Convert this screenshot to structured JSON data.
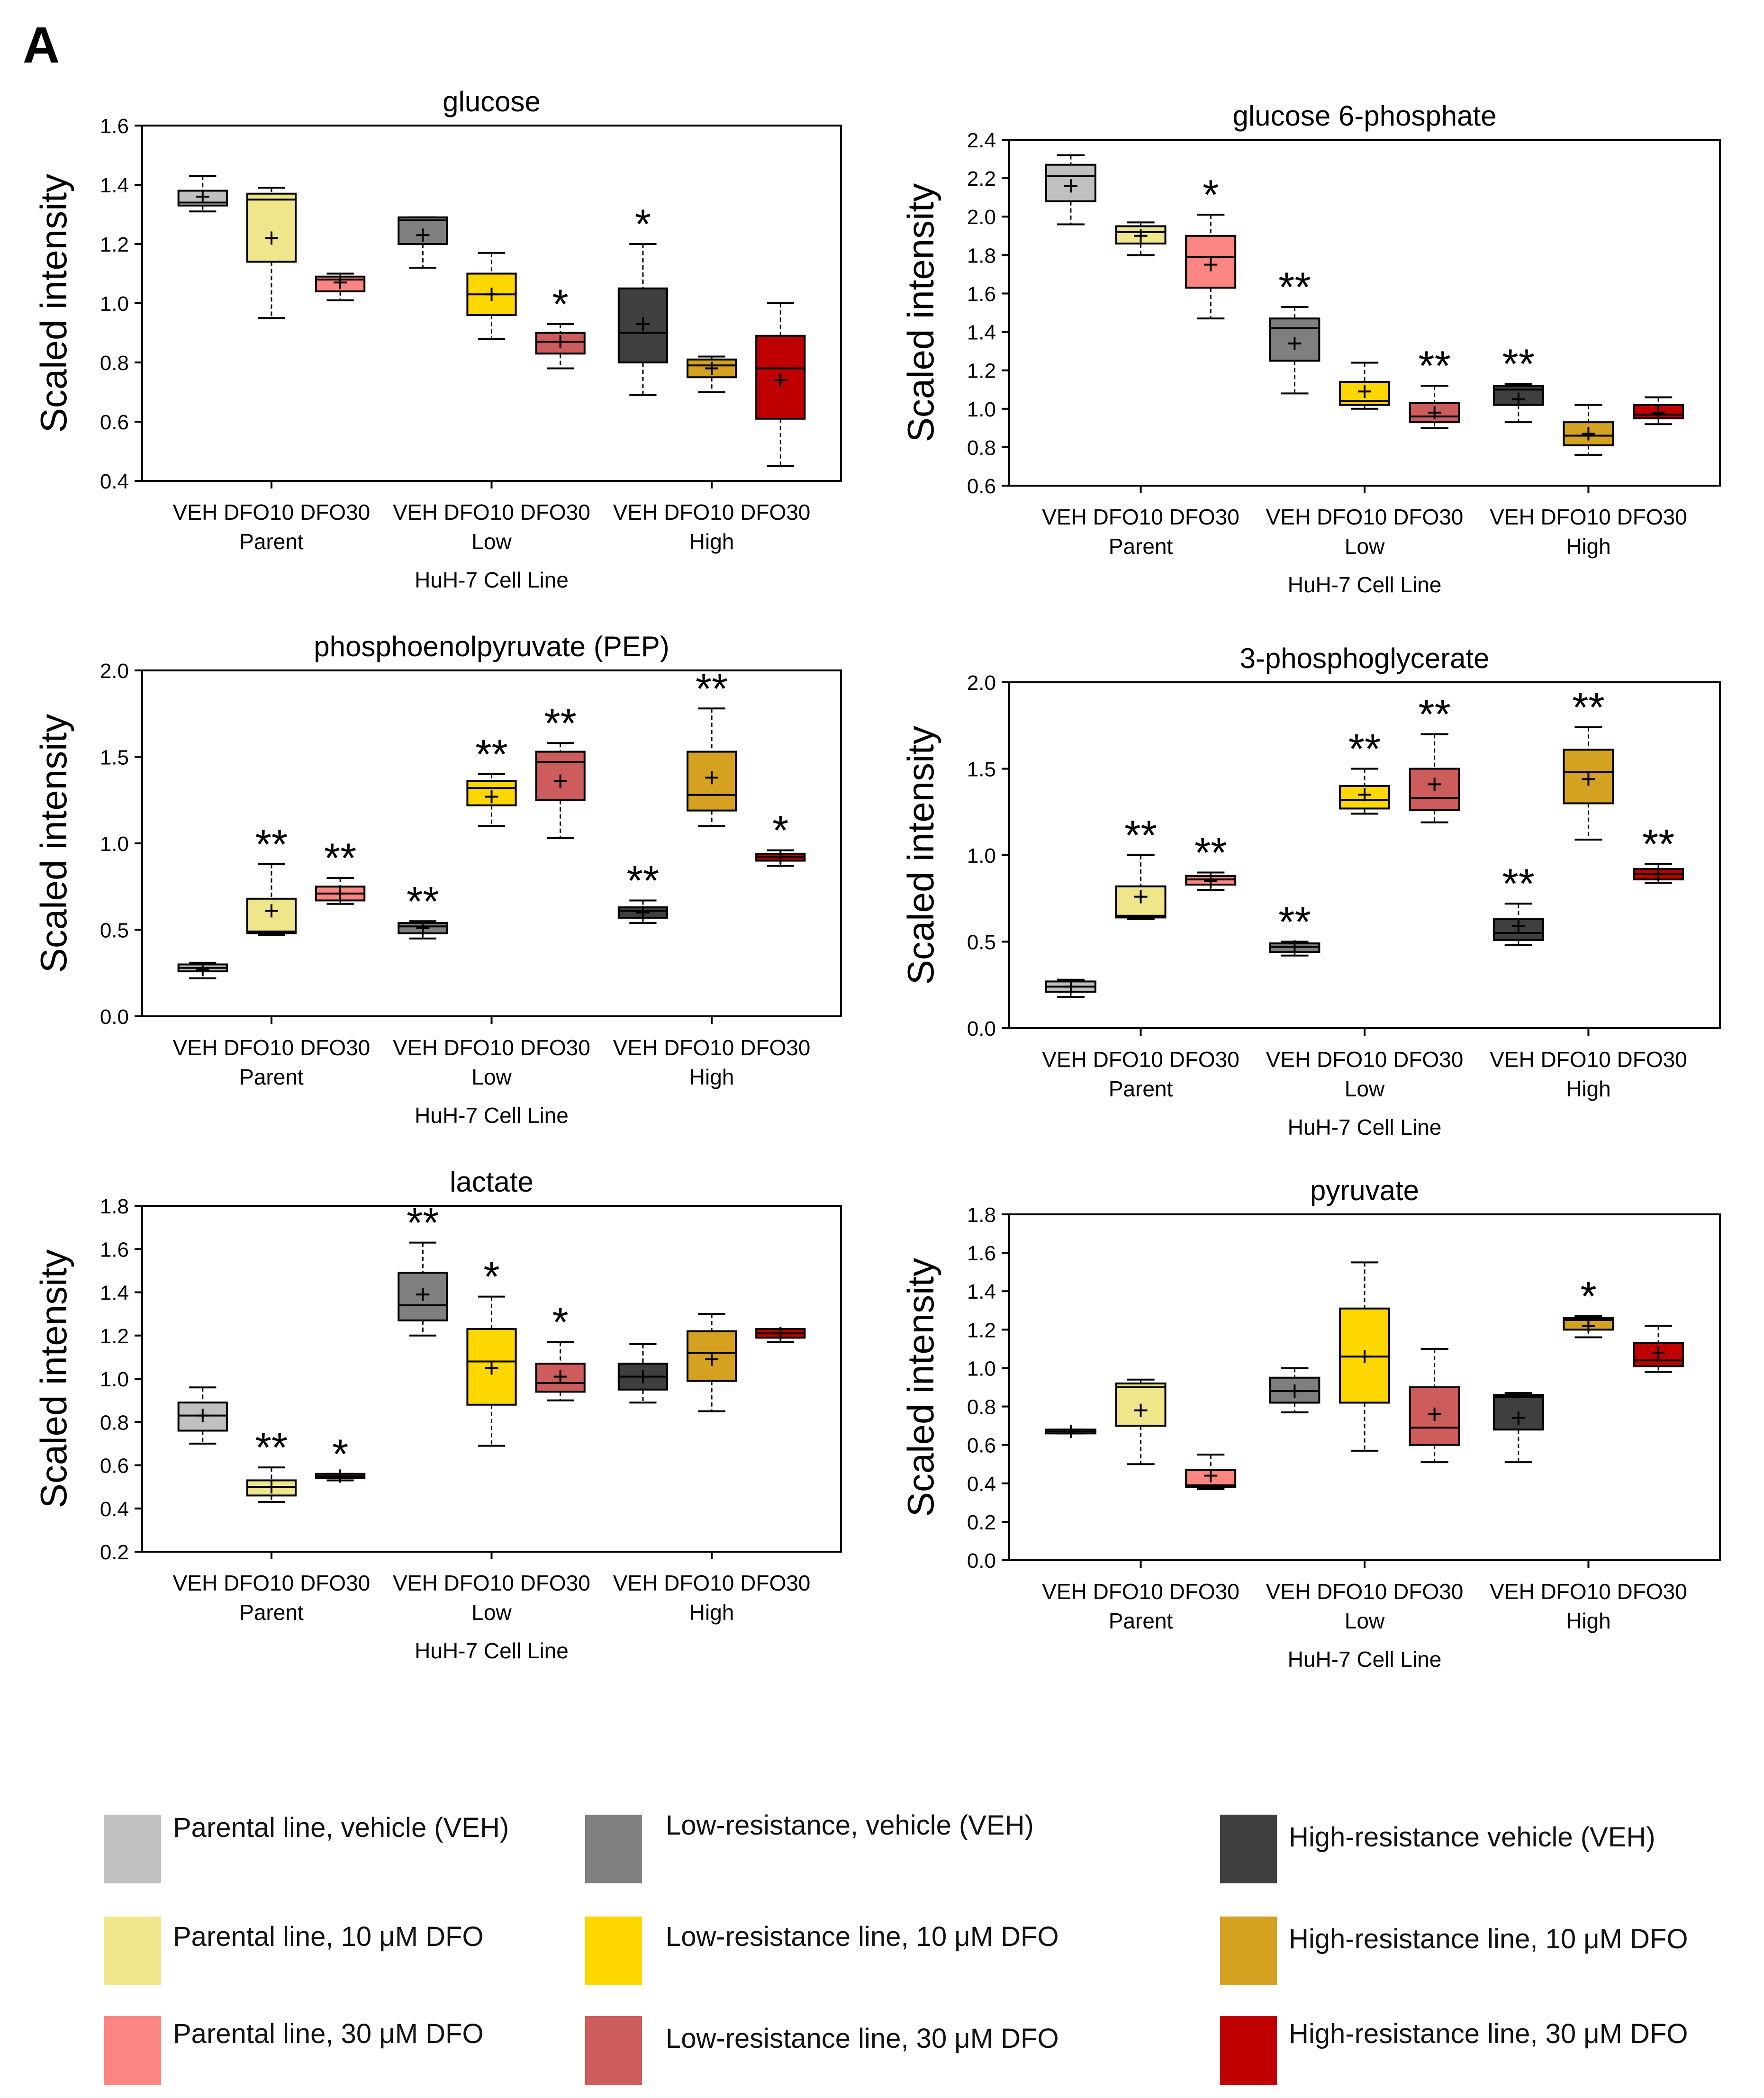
{
  "panel_label": "A",
  "colors": {
    "parent_veh": "#c0c0c0",
    "parent_dfo10": "#efe68b",
    "parent_dfo30": "#fb8580",
    "low_veh": "#7f7f7f",
    "low_dfo10": "#ffd700",
    "low_dfo30": "#cd5c5c",
    "high_veh": "#3f3f3f",
    "high_dfo10": "#d4a121",
    "high_dfo30": "#c00000"
  },
  "legend": [
    {
      "key": "parent_veh",
      "label": "Parental line, vehicle (VEH)"
    },
    {
      "key": "low_veh",
      "label": "Low-resistance, vehicle (VEH)"
    },
    {
      "key": "high_veh",
      "label": "High-resistance vehicle (VEH)"
    },
    {
      "key": "parent_dfo10",
      "label": "Parental line, 10 μM DFO"
    },
    {
      "key": "low_dfo10",
      "label": "Low-resistance line, 10 μM DFO"
    },
    {
      "key": "high_dfo10",
      "label": "High-resistance line, 10 μM DFO"
    },
    {
      "key": "parent_dfo30",
      "label": "Parental line, 30 μM DFO"
    },
    {
      "key": "low_dfo30",
      "label": "Low-resistance line, 30 μM DFO"
    },
    {
      "key": "high_dfo30",
      "label": "High-resistance line, 30 μM DFO"
    }
  ],
  "chart_data": [
    {
      "type": "box",
      "title": "glucose",
      "ylabel": "Scaled intensity",
      "xlabel": "HuH-7 Cell Line",
      "ylim": [
        0.4,
        1.6
      ],
      "yticks": [
        "0.4",
        "0.6",
        "0.8",
        "1.0",
        "1.2",
        "1.4",
        "1.6"
      ],
      "tick_labels": [
        "VEH DFO10 DFO30",
        "VEH  DFO10  DFO30",
        "VEH DFO10 DFO30"
      ],
      "group_labels": [
        "Parent",
        "Low",
        "High"
      ],
      "boxes": [
        {
          "key": "parent_veh",
          "min": 1.31,
          "q1": 1.33,
          "median": 1.34,
          "q3": 1.38,
          "max": 1.43,
          "mean": 1.36,
          "sig": ""
        },
        {
          "key": "parent_dfo10",
          "min": 0.95,
          "q1": 1.14,
          "median": 1.35,
          "q3": 1.37,
          "max": 1.39,
          "mean": 1.22,
          "sig": ""
        },
        {
          "key": "parent_dfo30",
          "min": 1.01,
          "q1": 1.04,
          "median": 1.08,
          "q3": 1.09,
          "max": 1.1,
          "mean": 1.07,
          "sig": ""
        },
        {
          "key": "low_veh",
          "min": 1.12,
          "q1": 1.2,
          "median": 1.28,
          "q3": 1.29,
          "max": 1.29,
          "mean": 1.23,
          "sig": ""
        },
        {
          "key": "low_dfo10",
          "min": 0.88,
          "q1": 0.96,
          "median": 1.03,
          "q3": 1.1,
          "max": 1.17,
          "mean": 1.03,
          "sig": ""
        },
        {
          "key": "low_dfo30",
          "min": 0.78,
          "q1": 0.83,
          "median": 0.87,
          "q3": 0.9,
          "max": 0.93,
          "mean": 0.87,
          "sig": "*"
        },
        {
          "key": "high_veh",
          "min": 0.69,
          "q1": 0.8,
          "median": 0.9,
          "q3": 1.05,
          "max": 1.2,
          "mean": 0.93,
          "sig": "*"
        },
        {
          "key": "high_dfo10",
          "min": 0.7,
          "q1": 0.75,
          "median": 0.79,
          "q3": 0.81,
          "max": 0.82,
          "mean": 0.78,
          "sig": ""
        },
        {
          "key": "high_dfo30",
          "min": 0.45,
          "q1": 0.61,
          "median": 0.78,
          "q3": 0.89,
          "max": 1.0,
          "mean": 0.74,
          "sig": ""
        }
      ]
    },
    {
      "type": "box",
      "title": "glucose 6-phosphate",
      "ylabel": "Scaled intensity",
      "xlabel": "HuH-7 Cell Line",
      "ylim": [
        0.6,
        2.4
      ],
      "yticks": [
        "0.6",
        "0.8",
        "1.0",
        "1.2",
        "1.4",
        "1.6",
        "1.8",
        "2.0",
        "2.2",
        "2.4"
      ],
      "tick_labels": [
        "VEH DFO10 DFO30",
        "VEH  DFO10  DFO30",
        "VEH DFO10 DFO30"
      ],
      "group_labels": [
        "Parent",
        "Low",
        "High"
      ],
      "boxes": [
        {
          "key": "parent_veh",
          "min": 1.96,
          "q1": 2.08,
          "median": 2.21,
          "q3": 2.27,
          "max": 2.32,
          "mean": 2.16,
          "sig": ""
        },
        {
          "key": "parent_dfo10",
          "min": 1.8,
          "q1": 1.86,
          "median": 1.92,
          "q3": 1.95,
          "max": 1.97,
          "mean": 1.9,
          "sig": ""
        },
        {
          "key": "parent_dfo30",
          "min": 1.47,
          "q1": 1.63,
          "median": 1.79,
          "q3": 1.9,
          "max": 2.01,
          "mean": 1.75,
          "sig": "*"
        },
        {
          "key": "low_veh",
          "min": 1.08,
          "q1": 1.25,
          "median": 1.42,
          "q3": 1.47,
          "max": 1.53,
          "mean": 1.34,
          "sig": "**"
        },
        {
          "key": "low_dfo10",
          "min": 1.0,
          "q1": 1.02,
          "median": 1.04,
          "q3": 1.14,
          "max": 1.24,
          "mean": 1.09,
          "sig": ""
        },
        {
          "key": "low_dfo30",
          "min": 0.9,
          "q1": 0.93,
          "median": 0.96,
          "q3": 1.03,
          "max": 1.12,
          "mean": 0.98,
          "sig": "**"
        },
        {
          "key": "high_veh",
          "min": 0.93,
          "q1": 1.02,
          "median": 1.1,
          "q3": 1.12,
          "max": 1.13,
          "mean": 1.05,
          "sig": "**"
        },
        {
          "key": "high_dfo10",
          "min": 0.76,
          "q1": 0.81,
          "median": 0.86,
          "q3": 0.93,
          "max": 1.02,
          "mean": 0.87,
          "sig": ""
        },
        {
          "key": "high_dfo30",
          "min": 0.92,
          "q1": 0.95,
          "median": 0.97,
          "q3": 1.02,
          "max": 1.06,
          "mean": 0.98,
          "sig": ""
        }
      ]
    },
    {
      "type": "box",
      "title": "phosphoenolpyruvate (PEP)",
      "ylabel": "Scaled intensity",
      "xlabel": "HuH-7 Cell Line",
      "ylim": [
        0.0,
        2.0
      ],
      "yticks": [
        "0.0",
        "0.5",
        "1.0",
        "1.5",
        "2.0"
      ],
      "tick_labels": [
        "VEH DFO10 DFO30",
        "VEH  DFO10  DFO30",
        "VEH DFO10 DFO30"
      ],
      "group_labels": [
        "Parent",
        "Low",
        "High"
      ],
      "boxes": [
        {
          "key": "parent_veh",
          "min": 0.22,
          "q1": 0.26,
          "median": 0.28,
          "q3": 0.3,
          "max": 0.31,
          "mean": 0.27,
          "sig": ""
        },
        {
          "key": "parent_dfo10",
          "min": 0.47,
          "q1": 0.48,
          "median": 0.49,
          "q3": 0.68,
          "max": 0.88,
          "mean": 0.61,
          "sig": "**"
        },
        {
          "key": "parent_dfo30",
          "min": 0.65,
          "q1": 0.67,
          "median": 0.71,
          "q3": 0.75,
          "max": 0.8,
          "mean": 0.71,
          "sig": "**"
        },
        {
          "key": "low_veh",
          "min": 0.45,
          "q1": 0.48,
          "median": 0.52,
          "q3": 0.54,
          "max": 0.55,
          "mean": 0.51,
          "sig": "**"
        },
        {
          "key": "low_dfo10",
          "min": 1.1,
          "q1": 1.22,
          "median": 1.32,
          "q3": 1.36,
          "max": 1.4,
          "mean": 1.27,
          "sig": "**"
        },
        {
          "key": "low_dfo30",
          "min": 1.03,
          "q1": 1.25,
          "median": 1.47,
          "q3": 1.53,
          "max": 1.58,
          "mean": 1.36,
          "sig": "**"
        },
        {
          "key": "high_veh",
          "min": 0.54,
          "q1": 0.57,
          "median": 0.61,
          "q3": 0.63,
          "max": 0.67,
          "mean": 0.6,
          "sig": "**"
        },
        {
          "key": "high_dfo10",
          "min": 1.1,
          "q1": 1.19,
          "median": 1.28,
          "q3": 1.53,
          "max": 1.78,
          "mean": 1.38,
          "sig": "**"
        },
        {
          "key": "high_dfo30",
          "min": 0.87,
          "q1": 0.9,
          "median": 0.92,
          "q3": 0.94,
          "max": 0.96,
          "mean": 0.92,
          "sig": "*"
        }
      ]
    },
    {
      "type": "box",
      "title": "3-phosphoglycerate",
      "ylabel": "Scaled intensity",
      "xlabel": "HuH-7 Cell Line",
      "ylim": [
        0.0,
        2.0
      ],
      "yticks": [
        "0.0",
        "0.5",
        "1.0",
        "1.5",
        "2.0"
      ],
      "tick_labels": [
        "VEH DFO10 DFO30",
        "VEH  DFO10  DFO30",
        "VEH DFO10 DFO30"
      ],
      "group_labels": [
        "Parent",
        "Low",
        "High"
      ],
      "boxes": [
        {
          "key": "parent_veh",
          "min": 0.18,
          "q1": 0.21,
          "median": 0.24,
          "q3": 0.27,
          "max": 0.28,
          "mean": 0.24,
          "sig": ""
        },
        {
          "key": "parent_dfo10",
          "min": 0.63,
          "q1": 0.64,
          "median": 0.65,
          "q3": 0.82,
          "max": 1.0,
          "mean": 0.76,
          "sig": "**"
        },
        {
          "key": "parent_dfo30",
          "min": 0.8,
          "q1": 0.83,
          "median": 0.86,
          "q3": 0.88,
          "max": 0.9,
          "mean": 0.85,
          "sig": "**"
        },
        {
          "key": "low_veh",
          "min": 0.42,
          "q1": 0.44,
          "median": 0.47,
          "q3": 0.49,
          "max": 0.5,
          "mean": 0.47,
          "sig": "**"
        },
        {
          "key": "low_dfo10",
          "min": 1.24,
          "q1": 1.27,
          "median": 1.32,
          "q3": 1.4,
          "max": 1.5,
          "mean": 1.35,
          "sig": "**"
        },
        {
          "key": "low_dfo30",
          "min": 1.19,
          "q1": 1.26,
          "median": 1.33,
          "q3": 1.5,
          "max": 1.7,
          "mean": 1.41,
          "sig": "**"
        },
        {
          "key": "high_veh",
          "min": 0.48,
          "q1": 0.51,
          "median": 0.55,
          "q3": 0.63,
          "max": 0.72,
          "mean": 0.59,
          "sig": "**"
        },
        {
          "key": "high_dfo10",
          "min": 1.09,
          "q1": 1.3,
          "median": 1.48,
          "q3": 1.61,
          "max": 1.74,
          "mean": 1.44,
          "sig": "**"
        },
        {
          "key": "high_dfo30",
          "min": 0.84,
          "q1": 0.86,
          "median": 0.89,
          "q3": 0.92,
          "max": 0.95,
          "mean": 0.89,
          "sig": "**"
        }
      ]
    },
    {
      "type": "box",
      "title": "lactate",
      "ylabel": "Scaled intensity",
      "xlabel": "HuH-7 Cell Line",
      "ylim": [
        0.2,
        1.8
      ],
      "yticks": [
        "0.2",
        "0.4",
        "0.6",
        "0.8",
        "1.0",
        "1.2",
        "1.4",
        "1.6",
        "1.8"
      ],
      "tick_labels": [
        "VEH DFO10 DFO30",
        "VEH  DFO10  DFO30",
        "VEH DFO10 DFO30"
      ],
      "group_labels": [
        "Parent",
        "Low",
        "High"
      ],
      "boxes": [
        {
          "key": "parent_veh",
          "min": 0.7,
          "q1": 0.76,
          "median": 0.83,
          "q3": 0.89,
          "max": 0.96,
          "mean": 0.83,
          "sig": ""
        },
        {
          "key": "parent_dfo10",
          "min": 0.43,
          "q1": 0.46,
          "median": 0.5,
          "q3": 0.53,
          "max": 0.59,
          "mean": 0.5,
          "sig": "**"
        },
        {
          "key": "parent_dfo30",
          "min": 0.53,
          "q1": 0.54,
          "median": 0.55,
          "q3": 0.56,
          "max": 0.56,
          "mean": 0.55,
          "sig": "*"
        },
        {
          "key": "low_veh",
          "min": 1.2,
          "q1": 1.27,
          "median": 1.34,
          "q3": 1.49,
          "max": 1.63,
          "mean": 1.39,
          "sig": "**"
        },
        {
          "key": "low_dfo10",
          "min": 0.69,
          "q1": 0.88,
          "median": 1.08,
          "q3": 1.23,
          "max": 1.38,
          "mean": 1.05,
          "sig": "*"
        },
        {
          "key": "low_dfo30",
          "min": 0.9,
          "q1": 0.94,
          "median": 0.98,
          "q3": 1.07,
          "max": 1.17,
          "mean": 1.01,
          "sig": "*"
        },
        {
          "key": "high_veh",
          "min": 0.89,
          "q1": 0.95,
          "median": 1.01,
          "q3": 1.07,
          "max": 1.16,
          "mean": 1.01,
          "sig": ""
        },
        {
          "key": "high_dfo10",
          "min": 0.85,
          "q1": 0.99,
          "median": 1.12,
          "q3": 1.22,
          "max": 1.3,
          "mean": 1.09,
          "sig": ""
        },
        {
          "key": "high_dfo30",
          "min": 1.17,
          "q1": 1.19,
          "median": 1.21,
          "q3": 1.23,
          "max": 1.23,
          "mean": 1.21,
          "sig": ""
        }
      ]
    },
    {
      "type": "box",
      "title": "pyruvate",
      "ylabel": "Scaled intensity",
      "xlabel": "HuH-7 Cell Line",
      "ylim": [
        0.0,
        1.8
      ],
      "yticks": [
        "0.0",
        "0.2",
        "0.4",
        "0.6",
        "0.8",
        "1.0",
        "1.2",
        "1.4",
        "1.6",
        "1.8"
      ],
      "tick_labels": [
        "VEH DFO10 DFO30",
        "VEH  DFO10  DFO30",
        "VEH DFO10 DFO30"
      ],
      "group_labels": [
        "Parent",
        "Low",
        "High"
      ],
      "boxes": [
        {
          "key": "parent_veh",
          "min": 0.66,
          "q1": 0.66,
          "median": 0.67,
          "q3": 0.68,
          "max": 0.68,
          "mean": 0.67,
          "sig": ""
        },
        {
          "key": "parent_dfo10",
          "min": 0.5,
          "q1": 0.7,
          "median": 0.9,
          "q3": 0.92,
          "max": 0.94,
          "mean": 0.78,
          "sig": ""
        },
        {
          "key": "parent_dfo30",
          "min": 0.37,
          "q1": 0.38,
          "median": 0.39,
          "q3": 0.47,
          "max": 0.55,
          "mean": 0.44,
          "sig": ""
        },
        {
          "key": "low_veh",
          "min": 0.77,
          "q1": 0.82,
          "median": 0.88,
          "q3": 0.95,
          "max": 1.0,
          "mean": 0.88,
          "sig": ""
        },
        {
          "key": "low_dfo10",
          "min": 0.57,
          "q1": 0.82,
          "median": 1.06,
          "q3": 1.31,
          "max": 1.55,
          "mean": 1.06,
          "sig": ""
        },
        {
          "key": "low_dfo30",
          "min": 0.51,
          "q1": 0.6,
          "median": 0.69,
          "q3": 0.9,
          "max": 1.1,
          "mean": 0.76,
          "sig": ""
        },
        {
          "key": "high_veh",
          "min": 0.51,
          "q1": 0.68,
          "median": 0.85,
          "q3": 0.86,
          "max": 0.87,
          "mean": 0.74,
          "sig": ""
        },
        {
          "key": "high_dfo10",
          "min": 1.16,
          "q1": 1.2,
          "median": 1.25,
          "q3": 1.26,
          "max": 1.27,
          "mean": 1.22,
          "sig": "*"
        },
        {
          "key": "high_dfo30",
          "min": 0.98,
          "q1": 1.01,
          "median": 1.04,
          "q3": 1.13,
          "max": 1.22,
          "mean": 1.08,
          "sig": ""
        }
      ]
    }
  ]
}
